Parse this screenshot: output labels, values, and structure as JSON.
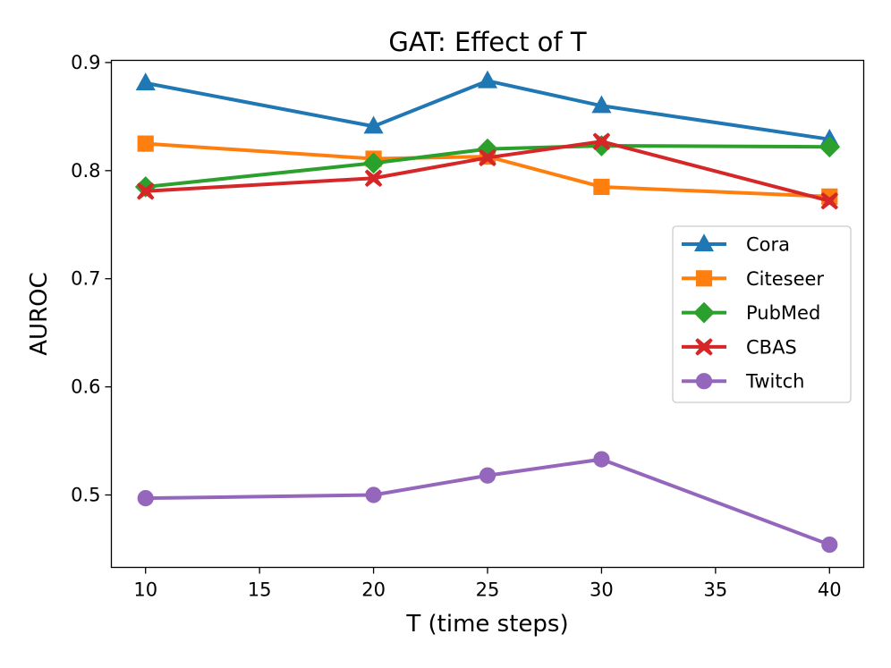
{
  "chart_data": {
    "type": "line",
    "title": "GAT: Effect of T",
    "xlabel": "T (time steps)",
    "ylabel": "AUROC",
    "x": [
      10,
      20,
      25,
      30,
      40
    ],
    "xlim": [
      8.5,
      41.5
    ],
    "ylim": [
      0.433,
      0.902
    ],
    "xticks": [
      10,
      15,
      20,
      25,
      30,
      35,
      40
    ],
    "xtick_labels": [
      "10",
      "15",
      "20",
      "25",
      "30",
      "35",
      "40"
    ],
    "yticks": [
      0.5,
      0.6,
      0.7,
      0.8,
      0.9
    ],
    "ytick_labels": [
      "0.5",
      "0.6",
      "0.7",
      "0.8",
      "0.9"
    ],
    "grid": false,
    "legend_position": "center-right",
    "series": [
      {
        "name": "Cora",
        "color": "#1f77b4",
        "marker": "triangle",
        "values": [
          0.881,
          0.841,
          0.883,
          0.86,
          0.829
        ]
      },
      {
        "name": "Citeseer",
        "color": "#ff7f0e",
        "marker": "square",
        "values": [
          0.825,
          0.811,
          0.813,
          0.785,
          0.776
        ]
      },
      {
        "name": "PubMed",
        "color": "#2ca02c",
        "marker": "diamond",
        "values": [
          0.785,
          0.807,
          0.82,
          0.823,
          0.822
        ]
      },
      {
        "name": "CBAS",
        "color": "#d62728",
        "marker": "x",
        "values": [
          0.781,
          0.793,
          0.812,
          0.827,
          0.772
        ]
      },
      {
        "name": "Twitch",
        "color": "#9467bd",
        "marker": "circle",
        "values": [
          0.497,
          0.5,
          0.518,
          0.533,
          0.454
        ]
      }
    ]
  }
}
